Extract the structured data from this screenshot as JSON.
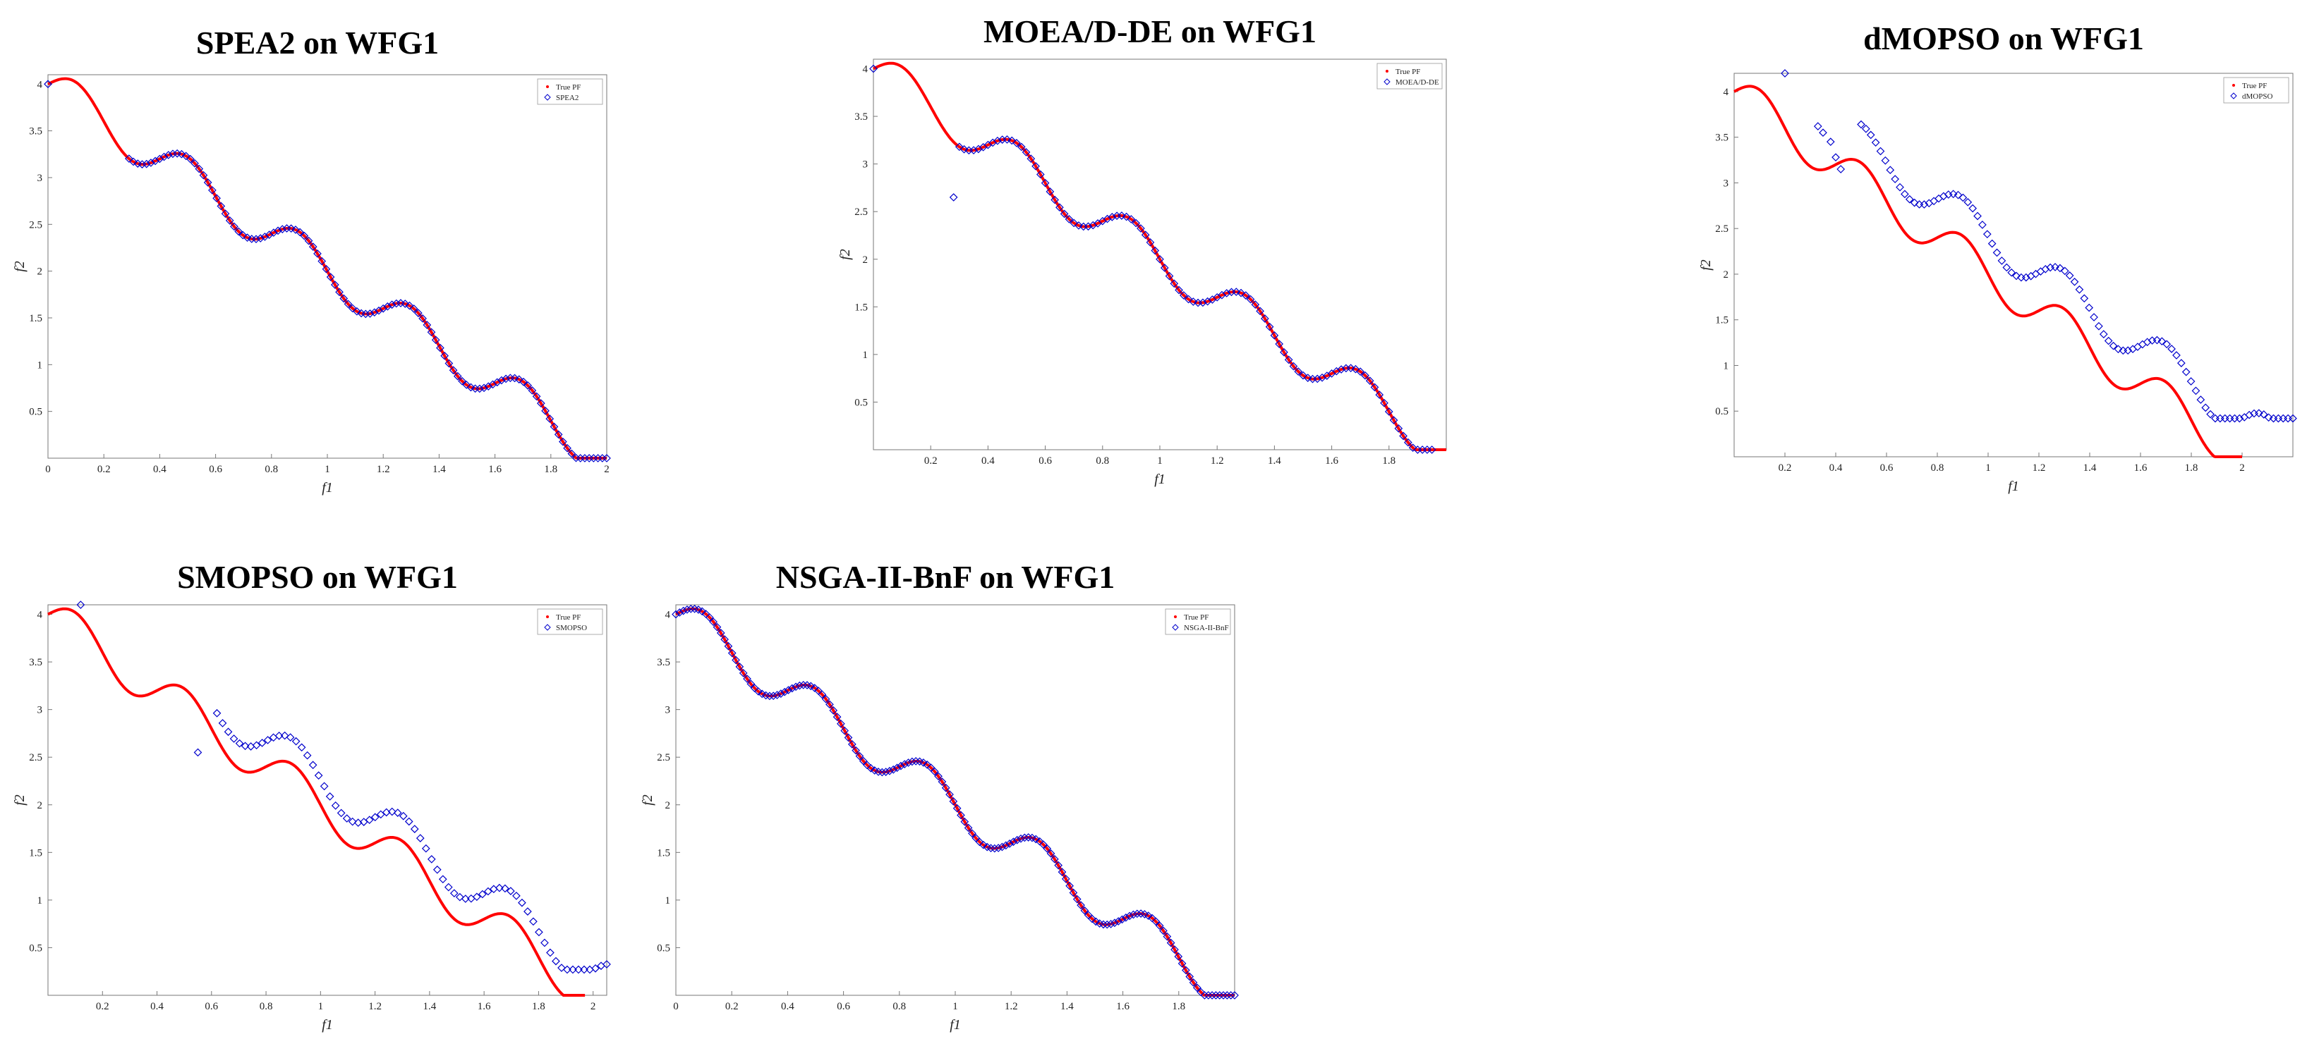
{
  "theme": {
    "true_pf_color": "#ff0000",
    "algo_color": "#0000cc",
    "axis_color": "#777777"
  },
  "chart_data": [
    {
      "type": "scatter",
      "title": "SPEA2 on WFG1",
      "xlabel": "f1",
      "ylabel": "f2",
      "xlim": [
        0,
        2
      ],
      "ylim": [
        0,
        4.1
      ],
      "xticks": [
        "0",
        "0.2",
        "0.4",
        "0.6",
        "0.8",
        "1",
        "1.2",
        "1.4",
        "1.6",
        "1.8",
        "2"
      ],
      "yticks": [
        "0.5",
        "1",
        "1.5",
        "2",
        "2.5",
        "3",
        "3.5",
        "4"
      ],
      "legend": [
        "True PF",
        "SPEA2"
      ],
      "series": [
        {
          "name": "True PF",
          "kind": "curve",
          "x_range": [
            0,
            2
          ]
        },
        {
          "name": "SPEA2",
          "kind": "front",
          "offset": 0.0,
          "x_from": 0.29,
          "x_to": 2.0,
          "n": 110,
          "extra_x": [
            0
          ],
          "extra_y": [
            4.0
          ]
        }
      ]
    },
    {
      "type": "scatter",
      "title": "MOEA/D-DE on WFG1",
      "xlabel": "f1",
      "ylabel": "f2",
      "xlim": [
        0,
        2
      ],
      "ylim": [
        0,
        4.1
      ],
      "xticks": [
        "0.2",
        "0.4",
        "0.6",
        "0.8",
        "1",
        "1.2",
        "1.4",
        "1.6",
        "1.8"
      ],
      "yticks": [
        "0.5",
        "1",
        "1.5",
        "2",
        "2.5",
        "3",
        "3.5",
        "4"
      ],
      "legend": [
        "True PF",
        "MOEA/D-DE"
      ],
      "series": [
        {
          "name": "True PF",
          "kind": "curve",
          "x_range": [
            0,
            2
          ]
        },
        {
          "name": "MOEA/D-DE",
          "kind": "front",
          "offset": 0.0,
          "x_from": 0.3,
          "x_to": 1.95,
          "n": 100,
          "extra_x": [
            0,
            0.28
          ],
          "extra_y": [
            4.0,
            2.65
          ]
        }
      ]
    },
    {
      "type": "scatter",
      "title": "dMOPSO on WFG1",
      "xlabel": "f1",
      "ylabel": "f2",
      "xlim": [
        0,
        2.2
      ],
      "ylim": [
        0,
        4.2
      ],
      "xticks": [
        "0.2",
        "0.4",
        "0.6",
        "0.8",
        "1",
        "1.2",
        "1.4",
        "1.6",
        "1.8",
        "2"
      ],
      "yticks": [
        "0.5",
        "1",
        "1.5",
        "2",
        "2.5",
        "3",
        "3.5",
        "4"
      ],
      "legend": [
        "True PF",
        "dMOPSO"
      ],
      "series": [
        {
          "name": "True PF",
          "kind": "curve",
          "x_range": [
            0,
            2
          ]
        },
        {
          "name": "dMOPSO",
          "kind": "front",
          "offset": 0.42,
          "x_from": 0.5,
          "x_to": 2.2,
          "n": 90,
          "extra_x": [
            0.2,
            0.33,
            0.35,
            0.38,
            0.4,
            0.42
          ],
          "extra_y": [
            4.2,
            3.62,
            3.55,
            3.45,
            3.28,
            3.15
          ]
        }
      ]
    },
    {
      "type": "scatter",
      "title": "SMOPSO on WFG1",
      "xlabel": "f1",
      "ylabel": "f2",
      "xlim": [
        0,
        2.05
      ],
      "ylim": [
        0,
        4.1
      ],
      "xticks": [
        "0.2",
        "0.4",
        "0.6",
        "0.8",
        "1",
        "1.2",
        "1.4",
        "1.6",
        "1.8",
        "2"
      ],
      "yticks": [
        "0.5",
        "1",
        "1.5",
        "2",
        "2.5",
        "3",
        "3.5",
        "4"
      ],
      "legend": [
        "True PF",
        "SMOPSO"
      ],
      "series": [
        {
          "name": "True PF",
          "kind": "curve",
          "x_range": [
            0,
            1.97
          ]
        },
        {
          "name": "SMOPSO",
          "kind": "front",
          "offset": 0.27,
          "x_from": 0.62,
          "x_to": 2.05,
          "n": 70,
          "extra_x": [
            0.12,
            0.55
          ],
          "extra_y": [
            4.1,
            2.55
          ]
        }
      ]
    },
    {
      "type": "scatter",
      "title": "NSGA-II-BnF on WFG1",
      "xlabel": "f1",
      "ylabel": "f2",
      "xlim": [
        0,
        2
      ],
      "ylim": [
        0,
        4.1
      ],
      "xticks": [
        "0",
        "0.2",
        "0.4",
        "0.6",
        "0.8",
        "1",
        "1.2",
        "1.4",
        "1.6",
        "1.8"
      ],
      "yticks": [
        "0.5",
        "1",
        "1.5",
        "2",
        "2.5",
        "3",
        "3.5",
        "4"
      ],
      "legend": [
        "True PF",
        "NSGA-II-BnF"
      ],
      "series": [
        {
          "name": "True PF",
          "kind": "curve",
          "x_range": [
            0,
            2
          ]
        },
        {
          "name": "NSGA-II-BnF",
          "kind": "front",
          "offset": 0.0,
          "x_from": 0.0,
          "x_to": 2.0,
          "n": 150,
          "extra_x": [],
          "extra_y": []
        }
      ]
    }
  ]
}
